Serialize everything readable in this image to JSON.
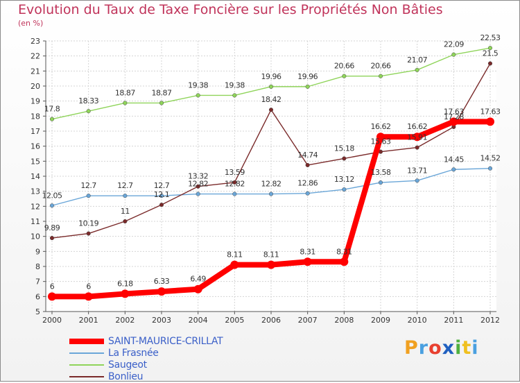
{
  "page": {
    "title": "Evolution du Taux de Taxe Foncière sur les Propriétés Non Bâties",
    "unit_label": "(en %)"
  },
  "logo": {
    "letters": [
      "P",
      "r",
      "o",
      "x",
      "i",
      "t",
      "i"
    ],
    "colors": [
      "#f0a020",
      "#4aa0e0",
      "#e84030",
      "#2060c0",
      "#50b040",
      "#f0c020",
      "#4aa0e0"
    ]
  },
  "chart_data": {
    "type": "line",
    "title": "Evolution du Taux de Taxe Foncière sur les Propriétés Non Bâties",
    "ylabel": "(en %)",
    "xlabel": "",
    "x": [
      "2000",
      "2001",
      "2002",
      "2003",
      "2004",
      "2005",
      "2006",
      "2007",
      "2008",
      "2009",
      "2010",
      "2011",
      "2012"
    ],
    "ylim": [
      5,
      23
    ],
    "yticks": [
      "5",
      "6",
      "7",
      "8",
      "9",
      "10",
      "11",
      "12",
      "13",
      "14",
      "15",
      "16",
      "17",
      "18",
      "19",
      "20",
      "21",
      "22",
      "23"
    ],
    "grid": true,
    "legend_position": "bottom-left",
    "series": [
      {
        "name": "SAINT-MAURICE-CRILLAT",
        "color": "#ff0000",
        "values": [
          6,
          6,
          6.18,
          6.33,
          6.49,
          8.11,
          8.11,
          8.31,
          8.31,
          16.62,
          16.62,
          17.63,
          17.63
        ],
        "labels": [
          "6",
          "6",
          "6.18",
          "6.33",
          "6.49",
          "8.11",
          "8.11",
          "8.31",
          "8.31",
          "16.62",
          "16.62",
          "17.63",
          "17.63"
        ]
      },
      {
        "name": "La Frasnée",
        "color": "#6aa6d8",
        "values": [
          12.05,
          12.7,
          12.7,
          12.7,
          12.82,
          12.82,
          12.82,
          12.86,
          13.12,
          13.58,
          13.71,
          14.45,
          14.52
        ],
        "labels": [
          "12.05",
          "12.7",
          "12.7",
          "12.7",
          "12.82",
          "12.82",
          "12.82",
          "12.86",
          "13.12",
          "13.58",
          "13.71",
          "14.45",
          "14.52"
        ]
      },
      {
        "name": "Saugeot",
        "color": "#8fd45a",
        "values": [
          17.8,
          18.33,
          18.87,
          18.87,
          19.38,
          19.38,
          19.96,
          19.96,
          20.66,
          20.66,
          21.07,
          22.09,
          22.53
        ],
        "labels": [
          "17.8",
          "18.33",
          "18.87",
          "18.87",
          "19.38",
          "19.38",
          "19.96",
          "19.96",
          "20.66",
          "20.66",
          "21.07",
          "22.09",
          "22.53"
        ]
      },
      {
        "name": "Bonlieu",
        "color": "#7a2a2a",
        "values": [
          9.89,
          10.19,
          11,
          12.1,
          13.32,
          13.59,
          18.42,
          14.74,
          15.18,
          15.63,
          15.91,
          17.28,
          21.5
        ],
        "labels": [
          "9.89",
          "10.19",
          "11",
          "12.1",
          "13.32",
          "13.59",
          "18.42",
          "14.74",
          "15.18",
          "15.63",
          "15.91",
          "17.28",
          "21.5"
        ]
      }
    ]
  }
}
